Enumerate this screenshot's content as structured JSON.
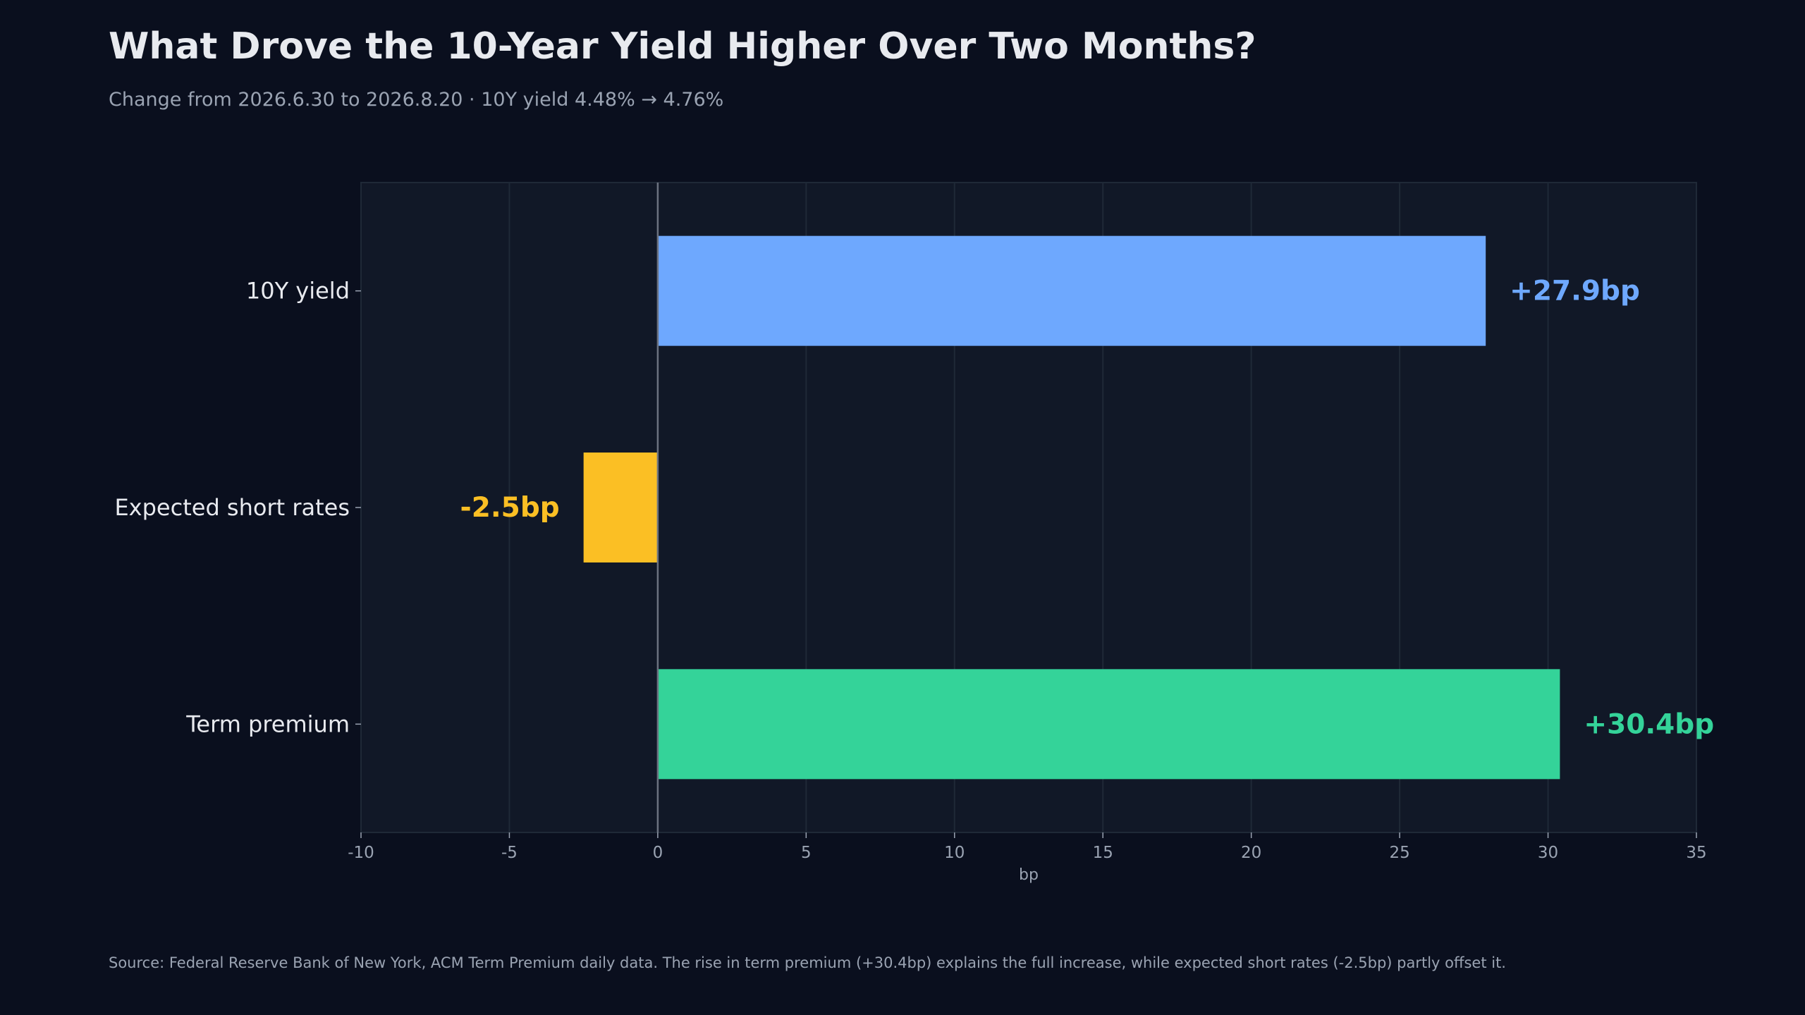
{
  "title": "What Drove the 10-Year Yield Higher Over Two Months?",
  "subtitle": "Change from 2026.6.30 to 2026.8.20 · 10Y yield 4.48% → 4.76%",
  "footer": "Source: Federal Reserve Bank of New York, ACM Term Premium daily data. The rise in term premium (+30.4bp) explains the full increase, while expected short rates (-2.5bp) partly offset it.",
  "chart_data": {
    "type": "bar",
    "orientation": "horizontal",
    "categories": [
      "10Y yield",
      "Expected short rates",
      "Term premium"
    ],
    "values": [
      27.9,
      -2.5,
      30.4
    ],
    "value_labels": [
      "+27.9bp",
      "-2.5bp",
      "+30.4bp"
    ],
    "colors": [
      "#6ea8fe",
      "#fbbf24",
      "#34d399"
    ],
    "xlabel": "bp",
    "ylabel": "",
    "xlim": [
      -10,
      35
    ],
    "xticks": [
      -10,
      -5,
      0,
      5,
      10,
      15,
      20,
      25,
      30,
      35
    ],
    "xtick_labels": [
      "-10",
      "-5",
      "0",
      "5",
      "10",
      "15",
      "20",
      "25",
      "30",
      "35"
    ],
    "grid": true
  }
}
